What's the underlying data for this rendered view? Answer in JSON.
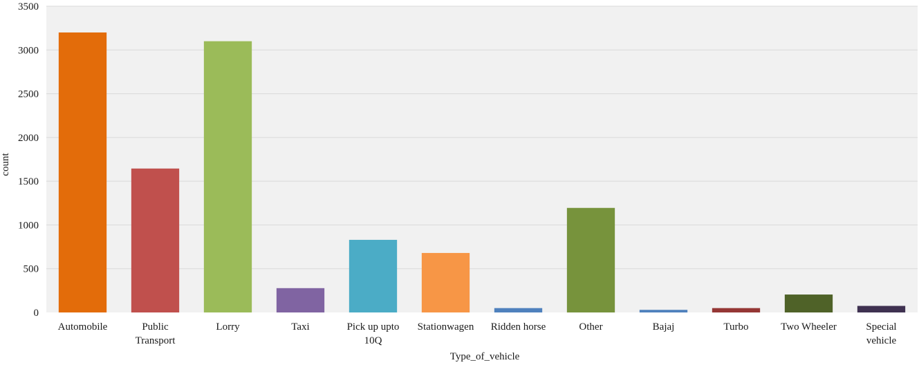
{
  "chart_data": {
    "type": "bar",
    "title": "",
    "xlabel": "Type_of_vehicle",
    "ylabel": "count",
    "ylim": [
      0,
      3500
    ],
    "yticks": [
      0,
      500,
      1000,
      1500,
      2000,
      2500,
      3000,
      3500
    ],
    "grid": "horizontal",
    "background": "#f1f1f1",
    "categories": [
      "Automobile",
      "Public Transport",
      "Lorry",
      "Taxi",
      "Pick up upto 10Q",
      "Stationwagen",
      "Ridden horse",
      "Other",
      "Bajaj",
      "Turbo",
      "Two Wheeler",
      "Special vehicle"
    ],
    "category_lines": [
      [
        "Automobile"
      ],
      [
        "Public",
        "Transport"
      ],
      [
        "Lorry"
      ],
      [
        "Taxi"
      ],
      [
        "Pick up upto",
        "10Q"
      ],
      [
        "Stationwagen"
      ],
      [
        "Ridden horse"
      ],
      [
        "Other"
      ],
      [
        "Bajaj"
      ],
      [
        "Turbo"
      ],
      [
        "Two Wheeler"
      ],
      [
        "Special",
        "vehicle"
      ]
    ],
    "values": [
      3200,
      1645,
      3100,
      278,
      830,
      680,
      50,
      1195,
      30,
      50,
      205,
      75
    ],
    "colors": [
      "#e36c0a",
      "#c0504d",
      "#9bbb59",
      "#8064a2",
      "#4bacc6",
      "#f79646",
      "#4f81bd",
      "#77933c",
      "#4f81bd",
      "#953735",
      "#4f6228",
      "#3f3151"
    ]
  }
}
